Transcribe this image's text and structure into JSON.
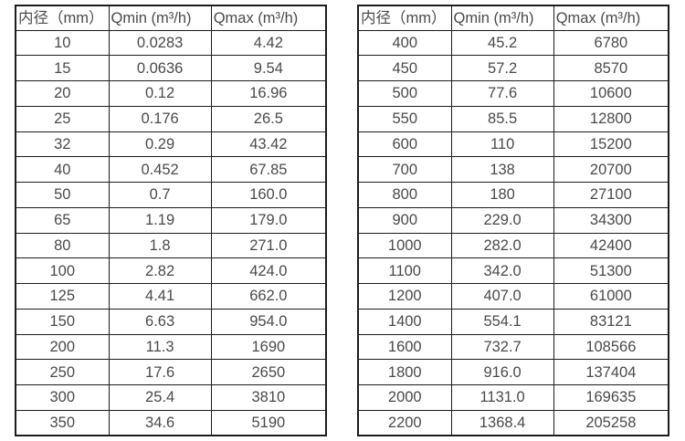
{
  "page": {
    "background": "#ffffff",
    "text_color": "#4a4a4a",
    "border_color": "#1c1c1c",
    "description": "Water meter inner-diameter flow range specification tables"
  },
  "tables": [
    {
      "name": "flow-table-small-diameters",
      "headers": [
        "内径（mm）",
        "Qmin (m³/h)",
        "Qmax (m³/h)"
      ],
      "rows": [
        [
          "10",
          "0.0283",
          "4.42"
        ],
        [
          "15",
          "0.0636",
          "9.54"
        ],
        [
          "20",
          "0.12",
          "16.96"
        ],
        [
          "25",
          "0.176",
          "26.5"
        ],
        [
          "32",
          "0.29",
          "43.42"
        ],
        [
          "40",
          "0.452",
          "67.85"
        ],
        [
          "50",
          "0.7",
          "160.0"
        ],
        [
          "65",
          "1.19",
          "179.0"
        ],
        [
          "80",
          "1.8",
          "271.0"
        ],
        [
          "100",
          "2.82",
          "424.0"
        ],
        [
          "125",
          "4.41",
          "662.0"
        ],
        [
          "150",
          "6.63",
          "954.0"
        ],
        [
          "200",
          "11.3",
          "1690"
        ],
        [
          "250",
          "17.6",
          "2650"
        ],
        [
          "300",
          "25.4",
          "3810"
        ],
        [
          "350",
          "34.6",
          "5190"
        ]
      ]
    },
    {
      "name": "flow-table-large-diameters",
      "headers": [
        "内径（mm）",
        "Qmin (m³/h)",
        "Qmax (m³/h)"
      ],
      "rows": [
        [
          "400",
          "45.2",
          "6780"
        ],
        [
          "450",
          "57.2",
          "8570"
        ],
        [
          "500",
          "77.6",
          "10600"
        ],
        [
          "550",
          "85.5",
          "12800"
        ],
        [
          "600",
          "110",
          "15200"
        ],
        [
          "700",
          "138",
          "20700"
        ],
        [
          "800",
          "180",
          "27100"
        ],
        [
          "900",
          "229.0",
          "34300"
        ],
        [
          "1000",
          "282.0",
          "42400"
        ],
        [
          "1100",
          "342.0",
          "51300"
        ],
        [
          "1200",
          "407.0",
          "61000"
        ],
        [
          "1400",
          "554.1",
          "83121"
        ],
        [
          "1600",
          "732.7",
          "108566"
        ],
        [
          "1800",
          "916.0",
          "137404"
        ],
        [
          "2000",
          "1131.0",
          "169635"
        ],
        [
          "2200",
          "1368.4",
          "205258"
        ]
      ]
    }
  ]
}
